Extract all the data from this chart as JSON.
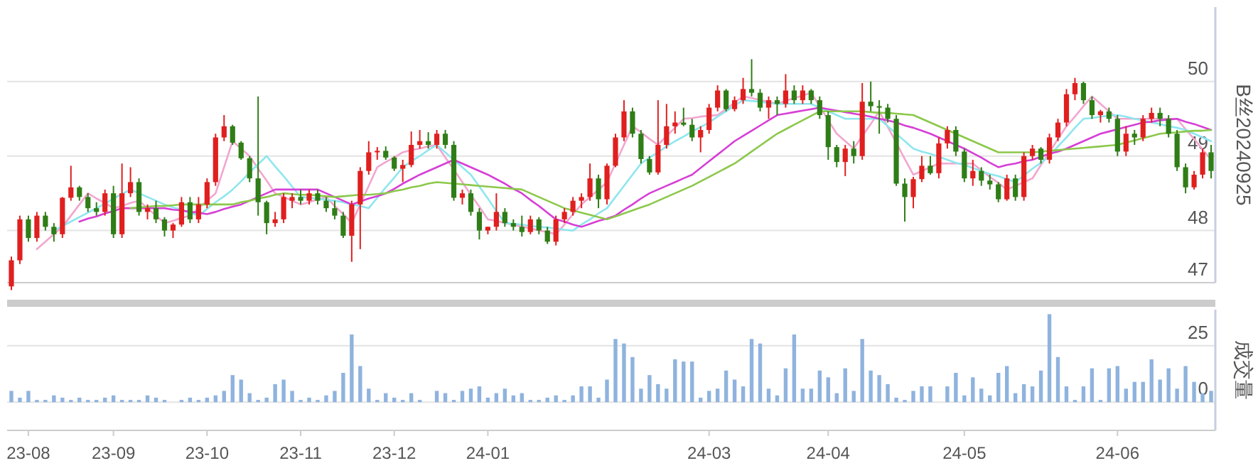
{
  "chart_data": [
    {
      "type": "candlestick",
      "ylabel": "B丝20240925",
      "grid": "y",
      "categories": [
        null,
        null,
        null,
        null,
        null,
        null,
        null,
        null,
        null,
        null,
        null,
        null,
        null,
        null,
        null,
        null,
        null,
        null,
        null,
        null,
        null,
        null,
        null,
        null,
        null,
        null,
        null,
        null,
        null,
        null,
        null,
        null,
        null,
        null,
        null,
        null,
        null,
        null,
        null,
        null,
        null,
        null,
        null,
        null,
        null,
        null,
        null,
        null,
        null,
        null,
        null,
        null,
        null,
        null,
        null,
        null,
        null,
        null,
        null,
        null,
        null,
        null,
        null,
        null,
        null,
        null,
        null,
        null,
        null,
        null,
        null,
        null,
        null,
        null,
        null,
        null,
        null,
        null,
        null,
        null,
        null,
        null,
        null,
        null,
        null,
        null,
        null,
        null,
        null,
        null,
        null,
        null,
        null,
        null,
        null,
        null,
        null,
        null,
        null,
        null,
        null,
        null,
        null,
        null,
        null,
        null,
        null,
        null,
        null,
        null,
        null,
        null,
        null,
        null,
        null,
        null,
        null,
        null,
        null,
        null,
        null,
        null,
        null,
        null,
        null,
        null,
        null,
        null,
        null,
        null,
        null,
        null,
        null,
        null,
        null,
        null,
        null,
        null,
        null,
        null,
        null,
        null
      ],
      "ylim": [
        47.3,
        51.0
      ],
      "yticks": [
        {
          "value": 47.3,
          "label": "47"
        },
        48,
        49,
        50
      ],
      "ohlc": [
        [
          47.25,
          47.65,
          47.2,
          47.6
        ],
        [
          47.6,
          48.2,
          47.55,
          48.15
        ],
        [
          48.15,
          48.2,
          47.85,
          47.9
        ],
        [
          47.9,
          48.25,
          47.85,
          48.2
        ],
        [
          48.2,
          48.25,
          48.0,
          48.05
        ],
        [
          48.05,
          48.1,
          47.85,
          47.95
        ],
        [
          47.95,
          48.45,
          47.9,
          48.44
        ],
        [
          48.44,
          48.87,
          48.4,
          48.58
        ],
        [
          48.58,
          48.6,
          48.4,
          48.45
        ],
        [
          48.45,
          48.5,
          48.25,
          48.3
        ],
        [
          48.3,
          48.38,
          48.2,
          48.25
        ],
        [
          48.25,
          48.55,
          48.2,
          48.5
        ],
        [
          48.5,
          48.6,
          47.9,
          47.95
        ],
        [
          47.95,
          48.9,
          47.9,
          48.5
        ],
        [
          48.5,
          48.85,
          48.45,
          48.65
        ],
        [
          48.65,
          48.7,
          48.2,
          48.25
        ],
        [
          48.25,
          48.35,
          48.15,
          48.3
        ],
        [
          48.3,
          48.4,
          48.1,
          48.15
        ],
        [
          48.15,
          48.18,
          47.92,
          48.0
        ],
        [
          48.0,
          48.1,
          47.9,
          48.08
        ],
        [
          48.08,
          48.45,
          48.05,
          48.38
        ],
        [
          48.38,
          48.45,
          48.1,
          48.15
        ],
        [
          48.15,
          48.45,
          48.1,
          48.35
        ],
        [
          48.35,
          48.7,
          48.3,
          48.65
        ],
        [
          48.65,
          49.3,
          48.6,
          49.25
        ],
        [
          49.25,
          49.55,
          49.2,
          49.4
        ],
        [
          49.4,
          49.42,
          49.15,
          49.18
        ],
        [
          49.18,
          49.2,
          48.95,
          48.97
        ],
        [
          48.97,
          49.0,
          48.65,
          48.7
        ],
        [
          48.7,
          49.8,
          48.2,
          48.38
        ],
        [
          48.38,
          48.4,
          47.95,
          48.1
        ],
        [
          48.1,
          48.25,
          48.05,
          48.15
        ],
        [
          48.15,
          48.5,
          48.1,
          48.45
        ],
        [
          48.4,
          48.5,
          48.3,
          48.45
        ],
        [
          48.45,
          48.55,
          48.35,
          48.4
        ],
        [
          48.4,
          48.55,
          48.35,
          48.5
        ],
        [
          48.5,
          48.55,
          48.35,
          48.4
        ],
        [
          48.4,
          48.45,
          48.25,
          48.3
        ],
        [
          48.3,
          48.4,
          48.15,
          48.2
        ],
        [
          48.2,
          48.25,
          47.9,
          47.93
        ],
        [
          47.93,
          48.4,
          47.58,
          48.35
        ],
        [
          48.35,
          48.85,
          47.75,
          48.8
        ],
        [
          48.8,
          49.2,
          48.75,
          49.05
        ],
        [
          49.05,
          49.12,
          48.95,
          49.07
        ],
        [
          49.07,
          49.13,
          48.95,
          48.98
        ],
        [
          48.98,
          49.0,
          48.8,
          48.83
        ],
        [
          48.83,
          48.95,
          48.65,
          48.88
        ],
        [
          48.88,
          49.33,
          48.85,
          49.15
        ],
        [
          49.15,
          49.35,
          49.1,
          49.2
        ],
        [
          49.2,
          49.32,
          49.1,
          49.15
        ],
        [
          49.15,
          49.35,
          49.1,
          49.3
        ],
        [
          49.3,
          49.35,
          49.1,
          49.15
        ],
        [
          49.15,
          49.2,
          48.4,
          48.44
        ],
        [
          48.44,
          48.55,
          48.35,
          48.5
        ],
        [
          48.5,
          48.55,
          48.2,
          48.25
        ],
        [
          48.25,
          48.3,
          47.88,
          48.0
        ],
        [
          48.0,
          48.05,
          47.95,
          48.05
        ],
        [
          48.05,
          48.5,
          48.0,
          48.25
        ],
        [
          48.25,
          48.3,
          48.05,
          48.1
        ],
        [
          48.1,
          48.15,
          48.0,
          48.05
        ],
        [
          48.05,
          48.2,
          47.92,
          47.98
        ],
        [
          47.98,
          48.2,
          47.95,
          48.15
        ],
        [
          48.15,
          48.18,
          47.95,
          48.0
        ],
        [
          48.0,
          48.05,
          47.82,
          47.85
        ],
        [
          47.85,
          48.2,
          47.8,
          48.15
        ],
        [
          48.15,
          48.3,
          48.1,
          48.25
        ],
        [
          48.25,
          48.45,
          48.2,
          48.4
        ],
        [
          48.4,
          48.5,
          48.3,
          48.45
        ],
        [
          48.45,
          48.9,
          48.4,
          48.7
        ],
        [
          48.7,
          48.75,
          48.3,
          48.42
        ],
        [
          48.42,
          48.9,
          48.35,
          48.87
        ],
        [
          48.87,
          49.3,
          48.85,
          49.25
        ],
        [
          49.25,
          49.75,
          49.2,
          49.6
        ],
        [
          49.6,
          49.65,
          49.25,
          49.3
        ],
        [
          49.3,
          49.35,
          48.9,
          48.96
        ],
        [
          48.96,
          49.0,
          48.75,
          48.78
        ],
        [
          48.78,
          49.75,
          48.75,
          49.15
        ],
        [
          49.15,
          49.7,
          49.1,
          49.4
        ],
        [
          49.4,
          49.6,
          49.3,
          49.45
        ],
        [
          49.45,
          49.65,
          49.4,
          49.42
        ],
        [
          49.42,
          49.5,
          49.2,
          49.25
        ],
        [
          49.25,
          49.4,
          49.05,
          49.35
        ],
        [
          49.35,
          49.7,
          49.3,
          49.65
        ],
        [
          49.65,
          49.95,
          49.6,
          49.88
        ],
        [
          49.88,
          49.9,
          49.6,
          49.63
        ],
        [
          49.63,
          49.8,
          49.6,
          49.75
        ],
        [
          49.75,
          50.05,
          49.7,
          49.9
        ],
        [
          49.9,
          50.3,
          49.8,
          49.85
        ],
        [
          49.85,
          49.9,
          49.6,
          49.65
        ],
        [
          49.65,
          49.8,
          49.5,
          49.75
        ],
        [
          49.75,
          49.8,
          49.55,
          49.7
        ],
        [
          49.7,
          50.1,
          49.65,
          49.88
        ],
        [
          49.88,
          49.95,
          49.7,
          49.75
        ],
        [
          49.75,
          49.95,
          49.7,
          49.88
        ],
        [
          49.88,
          49.9,
          49.7,
          49.75
        ],
        [
          49.75,
          49.8,
          49.5,
          49.55
        ],
        [
          49.55,
          49.6,
          48.95,
          49.12
        ],
        [
          49.12,
          49.15,
          48.85,
          48.92
        ],
        [
          48.92,
          49.15,
          48.73,
          49.1
        ],
        [
          49.1,
          49.2,
          48.9,
          49.0
        ],
        [
          49.0,
          49.98,
          48.95,
          49.73
        ],
        [
          49.73,
          50.0,
          49.6,
          49.67
        ],
        [
          49.67,
          49.75,
          49.3,
          49.65
        ],
        [
          49.65,
          49.7,
          49.45,
          49.5
        ],
        [
          49.5,
          49.55,
          48.6,
          48.63
        ],
        [
          48.63,
          48.7,
          48.12,
          48.45
        ],
        [
          48.45,
          48.72,
          48.3,
          48.69
        ],
        [
          48.69,
          49.0,
          48.65,
          48.87
        ],
        [
          48.87,
          49.0,
          48.75,
          48.77
        ],
        [
          48.77,
          49.25,
          48.7,
          49.17
        ],
        [
          49.17,
          49.4,
          49.1,
          49.35
        ],
        [
          49.35,
          49.4,
          49.0,
          49.06
        ],
        [
          49.06,
          49.1,
          48.65,
          48.7
        ],
        [
          48.7,
          48.95,
          48.6,
          48.8
        ],
        [
          48.8,
          48.85,
          48.6,
          48.67
        ],
        [
          48.67,
          48.75,
          48.55,
          48.62
        ],
        [
          48.62,
          48.65,
          48.38,
          48.42
        ],
        [
          48.42,
          48.75,
          48.4,
          48.7
        ],
        [
          48.7,
          48.75,
          48.4,
          48.45
        ],
        [
          48.45,
          49.05,
          48.4,
          49.0
        ],
        [
          49.0,
          49.15,
          48.95,
          49.1
        ],
        [
          49.1,
          49.12,
          48.9,
          48.95
        ],
        [
          48.95,
          49.3,
          48.9,
          49.25
        ],
        [
          49.25,
          49.5,
          49.2,
          49.45
        ],
        [
          49.45,
          49.9,
          49.4,
          49.83
        ],
        [
          49.83,
          50.05,
          49.75,
          49.98
        ],
        [
          49.98,
          50.0,
          49.7,
          49.75
        ],
        [
          49.75,
          49.8,
          49.5,
          49.55
        ],
        [
          49.55,
          49.62,
          49.45,
          49.6
        ],
        [
          49.6,
          49.65,
          49.45,
          49.5
        ],
        [
          49.5,
          49.55,
          49.0,
          49.06
        ],
        [
          49.06,
          49.4,
          49.0,
          49.3
        ],
        [
          49.3,
          49.35,
          49.15,
          49.25
        ],
        [
          49.25,
          49.55,
          49.2,
          49.5
        ],
        [
          49.5,
          49.65,
          49.45,
          49.58
        ],
        [
          49.58,
          49.65,
          49.4,
          49.5
        ],
        [
          49.5,
          49.55,
          49.25,
          49.3
        ],
        [
          49.3,
          49.35,
          48.8,
          48.85
        ],
        [
          48.85,
          48.9,
          48.5,
          48.58
        ],
        [
          48.58,
          48.8,
          48.55,
          48.75
        ],
        [
          48.75,
          49.1,
          48.7,
          49.05
        ],
        [
          49.05,
          49.15,
          48.7,
          48.8
        ]
      ],
      "series": [
        {
          "type": "line",
          "color": "#f2a6cf",
          "values": [
            null,
            null,
            null,
            47.75,
            47.85,
            47.95,
            48.05,
            48.2,
            48.35,
            48.5,
            48.43,
            48.37,
            48.3,
            48.33,
            48.37,
            48.4,
            48.3,
            48.2,
            48.1,
            48.13,
            48.17,
            48.2,
            48.3,
            48.4,
            48.5,
            48.85,
            49.2,
            49.1,
            49.0,
            48.83,
            48.67,
            48.5,
            48.45,
            48.4,
            48.35,
            48.38,
            48.42,
            48.45,
            48.33,
            48.22,
            48.1,
            48.35,
            48.6,
            48.85,
            48.92,
            48.98,
            49.05,
            49.08,
            49.1,
            49.13,
            49.15,
            48.98,
            48.82,
            48.65,
            48.48,
            48.32,
            48.15,
            48.13,
            48.1,
            48.08,
            48.05,
            48.03,
            48.0,
            47.98,
            47.95,
            48.08,
            48.22,
            48.35,
            48.45,
            48.55,
            48.65,
            48.9,
            49.15,
            49.4,
            49.32,
            49.23,
            49.15,
            49.27,
            49.38,
            49.5,
            49.51,
            49.53,
            49.54,
            49.55,
            49.63,
            49.72,
            49.8,
            49.78,
            49.75,
            49.73,
            49.7,
            49.74,
            49.78,
            49.81,
            49.85,
            49.67,
            49.48,
            49.3,
            49.2,
            49.1,
            49.27,
            49.43,
            49.6,
            49.39,
            49.18,
            48.96,
            48.75,
            48.8,
            48.85,
            48.9,
            48.9,
            48.9,
            48.9,
            48.9,
            48.81,
            48.72,
            48.64,
            48.55,
            48.6,
            48.65,
            48.7,
            48.88,
            49.05,
            49.23,
            49.4,
            49.53,
            49.67,
            49.8,
            49.7,
            49.6,
            49.5,
            49.5,
            49.5,
            49.5,
            49.5,
            49.5,
            49.5,
            49.5,
            49.36,
            49.23,
            49.09,
            48.95
          ]
        },
        {
          "type": "line",
          "color": "#8fe6ef",
          "values": [
            null,
            null,
            null,
            null,
            null,
            48.0,
            48.06,
            48.12,
            48.18,
            48.24,
            48.3,
            48.36,
            48.43,
            48.49,
            48.55,
            48.5,
            48.45,
            48.4,
            48.35,
            48.31,
            48.28,
            48.24,
            48.2,
            48.29,
            48.38,
            48.46,
            48.55,
            48.66,
            48.78,
            48.89,
            49.0,
            48.86,
            48.73,
            48.59,
            48.45,
            48.44,
            48.43,
            48.41,
            48.4,
            48.38,
            48.35,
            48.33,
            48.3,
            48.44,
            48.58,
            48.71,
            48.85,
            48.93,
            49.0,
            49.08,
            49.15,
            49.05,
            48.95,
            48.85,
            48.75,
            48.59,
            48.43,
            48.26,
            48.1,
            48.09,
            48.08,
            48.06,
            48.05,
            48.04,
            48.03,
            48.01,
            48.0,
            48.08,
            48.15,
            48.23,
            48.3,
            48.45,
            48.6,
            48.75,
            48.9,
            48.98,
            49.05,
            49.13,
            49.2,
            49.26,
            49.33,
            49.39,
            49.45,
            49.53,
            49.6,
            49.68,
            49.75,
            49.74,
            49.73,
            49.71,
            49.7,
            49.7,
            49.7,
            49.7,
            49.7,
            49.65,
            49.6,
            49.55,
            49.5,
            49.5,
            49.5,
            49.5,
            49.5,
            49.4,
            49.3,
            49.2,
            49.1,
            49.06,
            49.03,
            48.99,
            48.95,
            48.91,
            48.88,
            48.84,
            48.8,
            48.76,
            48.73,
            48.69,
            48.65,
            48.74,
            48.83,
            48.91,
            49.0,
            49.13,
            49.25,
            49.38,
            49.5,
            49.51,
            49.53,
            49.54,
            49.55,
            49.53,
            49.5,
            49.48,
            49.45,
            49.43,
            49.4,
            49.38,
            49.35,
            49.3,
            49.25,
            49.2
          ]
        },
        {
          "type": "line",
          "color": "#d63fd6",
          "values": [
            null,
            null,
            null,
            null,
            null,
            null,
            null,
            null,
            48.12,
            48.16,
            48.19,
            48.23,
            48.26,
            48.3,
            48.3,
            48.3,
            48.3,
            48.3,
            48.3,
            48.28,
            48.27,
            48.25,
            48.24,
            48.22,
            48.25,
            48.29,
            48.32,
            48.35,
            48.4,
            48.45,
            48.5,
            48.55,
            48.55,
            48.55,
            48.55,
            48.55,
            48.55,
            48.5,
            48.45,
            48.4,
            48.35,
            48.39,
            48.43,
            48.46,
            48.5,
            48.56,
            48.63,
            48.69,
            48.75,
            48.8,
            48.85,
            48.9,
            48.95,
            48.9,
            48.85,
            48.8,
            48.75,
            48.69,
            48.63,
            48.56,
            48.5,
            48.41,
            48.33,
            48.24,
            48.15,
            48.12,
            48.08,
            48.05,
            48.09,
            48.13,
            48.16,
            48.2,
            48.28,
            48.35,
            48.43,
            48.5,
            48.55,
            48.6,
            48.65,
            48.7,
            48.75,
            48.84,
            48.93,
            49.02,
            49.11,
            49.2,
            49.27,
            49.34,
            49.41,
            49.48,
            49.55,
            49.57,
            49.59,
            49.61,
            49.63,
            49.65,
            49.63,
            49.61,
            49.59,
            49.57,
            49.55,
            49.53,
            49.5,
            49.48,
            49.45,
            49.41,
            49.38,
            49.34,
            49.3,
            49.25,
            49.2,
            49.15,
            49.1,
            49.04,
            48.98,
            48.91,
            48.85,
            48.88,
            48.9,
            48.93,
            48.95,
            48.99,
            49.03,
            49.06,
            49.1,
            49.15,
            49.2,
            49.25,
            49.3,
            49.33,
            49.36,
            49.39,
            49.42,
            49.45,
            49.46,
            49.48,
            49.49,
            49.5,
            49.46,
            49.43,
            49.39,
            49.35
          ]
        },
        {
          "type": "line",
          "color": "#8cc84b",
          "values": [
            null,
            null,
            null,
            null,
            null,
            null,
            null,
            null,
            null,
            null,
            null,
            null,
            null,
            null,
            48.3,
            48.31,
            48.32,
            48.33,
            48.33,
            48.34,
            48.35,
            48.35,
            48.35,
            48.35,
            48.35,
            48.35,
            48.35,
            48.38,
            48.4,
            48.43,
            48.45,
            48.48,
            48.5,
            48.49,
            48.48,
            48.48,
            48.47,
            48.46,
            48.45,
            48.46,
            48.47,
            48.48,
            48.48,
            48.49,
            48.5,
            48.53,
            48.55,
            48.58,
            48.6,
            48.63,
            48.65,
            48.64,
            48.63,
            48.62,
            48.61,
            48.6,
            48.59,
            48.58,
            48.57,
            48.56,
            48.55,
            48.5,
            48.45,
            48.4,
            48.35,
            48.3,
            48.27,
            48.24,
            48.21,
            48.18,
            48.15,
            48.19,
            48.23,
            48.27,
            48.31,
            48.35,
            48.4,
            48.45,
            48.5,
            48.55,
            48.6,
            48.66,
            48.72,
            48.78,
            48.84,
            48.9,
            48.98,
            49.06,
            49.14,
            49.22,
            49.3,
            49.36,
            49.42,
            49.48,
            49.54,
            49.6,
            49.6,
            49.6,
            49.6,
            49.6,
            49.6,
            49.59,
            49.58,
            49.58,
            49.57,
            49.56,
            49.55,
            49.5,
            49.45,
            49.4,
            49.35,
            49.3,
            49.25,
            49.2,
            49.15,
            49.1,
            49.05,
            49.05,
            49.05,
            49.05,
            49.05,
            49.06,
            49.07,
            49.08,
            49.09,
            49.1,
            49.11,
            49.12,
            49.13,
            49.14,
            49.15,
            49.18,
            49.21,
            49.24,
            49.27,
            49.3,
            49.31,
            49.32,
            49.33,
            49.34,
            49.34,
            49.35
          ]
        }
      ]
    },
    {
      "type": "bar",
      "ylabel": "成交量",
      "color": "#8fb3de",
      "grid": "y",
      "categories": [
        null,
        null,
        "23-08",
        null,
        null,
        null,
        null,
        null,
        null,
        null,
        null,
        null,
        "23-09",
        null,
        null,
        null,
        null,
        null,
        null,
        null,
        null,
        null,
        null,
        "23-10",
        null,
        null,
        null,
        null,
        null,
        null,
        null,
        null,
        null,
        null,
        "23-11",
        null,
        null,
        null,
        null,
        null,
        null,
        null,
        null,
        null,
        null,
        "23-12",
        null,
        null,
        null,
        null,
        null,
        null,
        null,
        null,
        null,
        null,
        "24-01",
        null,
        null,
        null,
        null,
        null,
        null,
        null,
        null,
        null,
        null,
        null,
        null,
        null,
        null,
        null,
        null,
        null,
        null,
        null,
        null,
        null,
        null,
        null,
        null,
        null,
        "24-03",
        null,
        null,
        null,
        null,
        null,
        null,
        null,
        null,
        null,
        null,
        null,
        null,
        null,
        "24-04",
        null,
        null,
        null,
        null,
        null,
        null,
        null,
        null,
        null,
        null,
        null,
        null,
        null,
        null,
        null,
        "24-05",
        null,
        null,
        null,
        null,
        null,
        null,
        null,
        null,
        null,
        null,
        null,
        null,
        null,
        null,
        null,
        null,
        null,
        "24-06",
        null,
        null,
        null,
        null,
        null,
        null,
        null,
        null,
        null,
        null,
        null
      ],
      "ylim": [
        -12.5,
        41
      ],
      "yticks": [
        0,
        25
      ],
      "values": [
        5,
        2,
        5,
        1,
        1,
        3,
        2,
        1,
        2,
        1,
        1,
        2,
        3,
        1,
        1,
        1,
        3,
        2,
        1,
        0,
        1,
        2,
        1,
        2,
        3,
        5,
        12,
        10,
        4,
        1,
        2,
        8,
        10,
        5,
        1,
        2,
        1,
        3,
        5,
        13,
        30,
        16,
        6,
        1,
        4,
        2,
        1,
        4,
        1,
        0,
        5,
        4,
        1,
        5,
        6,
        7,
        2,
        4,
        6,
        3,
        4,
        1,
        1,
        2,
        3,
        1,
        3,
        7,
        7,
        2,
        10,
        28,
        26,
        20,
        6,
        12,
        8,
        6,
        19,
        18,
        18,
        2,
        5,
        6,
        14,
        10,
        7,
        28,
        26,
        6,
        3,
        15,
        30,
        6,
        6,
        14,
        11,
        4,
        15,
        5,
        28,
        14,
        12,
        8,
        2,
        1,
        5,
        7,
        7,
        0,
        7,
        13,
        3,
        11,
        6,
        3,
        13,
        16,
        4,
        8,
        7,
        14,
        39,
        20,
        7,
        1,
        7,
        15,
        1,
        15,
        16,
        6,
        9,
        9,
        19,
        10,
        15,
        6,
        16,
        9,
        4,
        5
      ]
    }
  ]
}
